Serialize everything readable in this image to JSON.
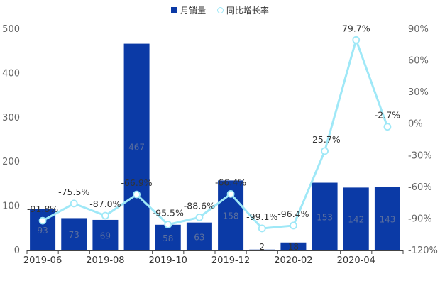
{
  "chart_data": {
    "type": "bar+line",
    "title": "",
    "categories": [
      "2019-06",
      "2019-07",
      "2019-08",
      "2019-09",
      "2019-10",
      "2019-11",
      "2019-12",
      "2020-01",
      "2020-02",
      "2020-03",
      "2020-04",
      "2020-05"
    ],
    "x_tick_labels": [
      "2019-06",
      "2019-08",
      "2019-10",
      "2019-12",
      "2020-02",
      "2020-04"
    ],
    "series": [
      {
        "name": "月销量",
        "type": "bar",
        "axis": "left",
        "color": "#0b3aa6",
        "values": [
          93,
          73,
          69,
          467,
          58,
          63,
          158,
          2,
          18,
          153,
          142,
          143
        ],
        "labels": [
          "93",
          "73",
          "69",
          "467",
          "58",
          "63",
          "158",
          "2",
          "18",
          "153",
          "142",
          "143"
        ]
      },
      {
        "name": "同比增长率",
        "type": "line",
        "axis": "right",
        "color": "#9fe8f7",
        "values": [
          -91.8,
          -75.5,
          -87.0,
          -66.9,
          -95.5,
          -88.6,
          -66.4,
          -99.1,
          -96.4,
          -25.7,
          79.7,
          -2.7
        ],
        "labels": [
          "-91.8%",
          "-75.5%",
          "-87.0%",
          "-66.9%",
          "-95.5%",
          "-88.6%",
          "-66.4%",
          "-99.1%",
          "-96.4%",
          "-25.7%",
          "79.7%",
          "-2.7%"
        ]
      }
    ],
    "y_left": {
      "min": 0,
      "max": 500,
      "ticks": [
        0,
        100,
        200,
        300,
        400,
        500
      ],
      "tick_labels": [
        "0",
        "100",
        "200",
        "300",
        "400",
        "500"
      ]
    },
    "y_right": {
      "min": -120,
      "max": 90,
      "ticks": [
        -120,
        -90,
        -60,
        -30,
        0,
        30,
        60,
        90
      ],
      "tick_labels": [
        "-120%",
        "-90%",
        "-60%",
        "-30%",
        "0%",
        "30%",
        "60%",
        "90%"
      ]
    },
    "legend_position": "top-center",
    "grid": false
  }
}
